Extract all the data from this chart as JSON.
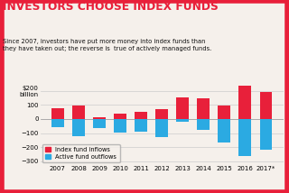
{
  "title": "INVESTORS CHOOSE INDEX FUNDS",
  "subtitle": "Since 2007, investors have put more money into index funds than\nthey have taken out; the reverse is  true of actively managed funds.",
  "years": [
    "2007",
    "2008",
    "2009",
    "2010",
    "2011",
    "2012",
    "2013",
    "2014",
    "2015",
    "2016",
    "2017*"
  ],
  "index_inflows": [
    75,
    95,
    10,
    40,
    50,
    70,
    155,
    150,
    95,
    235,
    195
  ],
  "active_outflows": [
    -55,
    -120,
    -65,
    -95,
    -90,
    -130,
    -20,
    -75,
    -165,
    -265,
    -215
  ],
  "index_color": "#e8203a",
  "active_color": "#2baae2",
  "bg_color": "#f5f0eb",
  "title_color": "#e8203a",
  "border_color": "#e8203a",
  "ytick_labels": [
    "$200\nbillion",
    "100",
    "0",
    "−100",
    "−200",
    "−300"
  ],
  "yticks": [
    200,
    100,
    0,
    -100,
    -200,
    -300
  ],
  "ylim": [
    -320,
    270
  ],
  "legend_labels": [
    "Index fund inflows",
    "Active fund outflows"
  ],
  "grid_color": "#cccccc"
}
